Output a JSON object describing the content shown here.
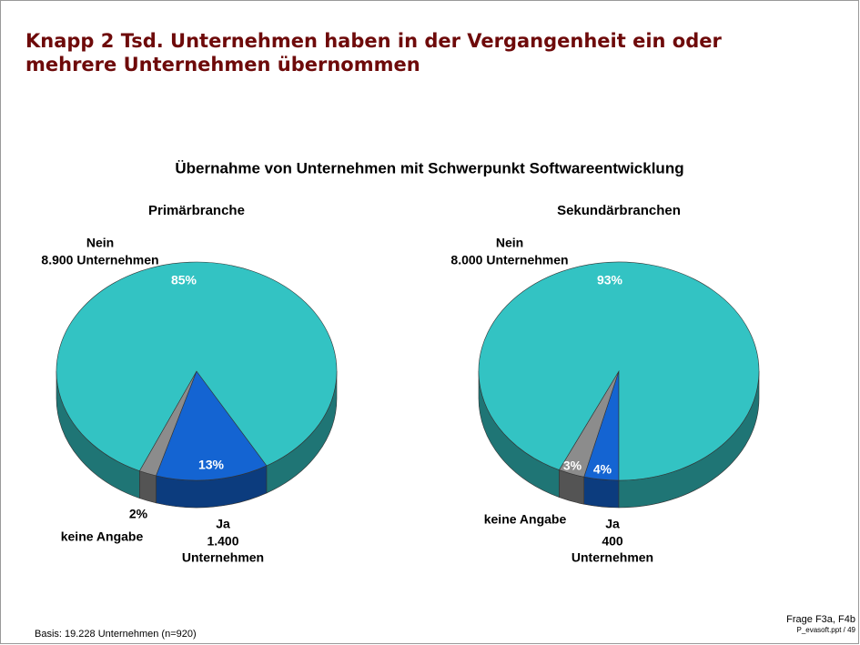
{
  "title": "Knapp 2 Tsd. Unternehmen haben in der Vergangenheit ein oder mehrere Unternehmen übernommen",
  "subtitle": "Übernahme von Unternehmen mit Schwerpunkt Softwareentwicklung",
  "chart_data": [
    {
      "type": "pie",
      "title": "Primärbranche",
      "categories": [
        "Nein",
        "Ja",
        "keine Angabe"
      ],
      "category_notes": [
        [
          "8.900 Unternehmen"
        ],
        [
          "1.400",
          "Unternehmen"
        ],
        []
      ],
      "values": [
        85,
        13,
        2
      ],
      "value_labels": [
        "85%",
        "13%",
        "2%"
      ],
      "colors": [
        "#33c3c3",
        "#1464d2",
        "#8c8c8c"
      ]
    },
    {
      "type": "pie",
      "title": "Sekundärbranchen",
      "categories": [
        "Nein",
        "Ja",
        "keine Angabe"
      ],
      "category_notes": [
        [
          "8.000 Unternehmen"
        ],
        [
          "400",
          "Unternehmen"
        ],
        []
      ],
      "values": [
        93,
        4,
        3
      ],
      "value_labels": [
        "93%",
        "4%",
        "3%"
      ],
      "colors": [
        "#33c3c3",
        "#1464d2",
        "#8c8c8c"
      ]
    }
  ],
  "footer": {
    "basis": "Basis: 19.228 Unternehmen (n=920)",
    "source": "Frage F3a, F4b",
    "file": "P_evasoft.ppt / 49"
  }
}
